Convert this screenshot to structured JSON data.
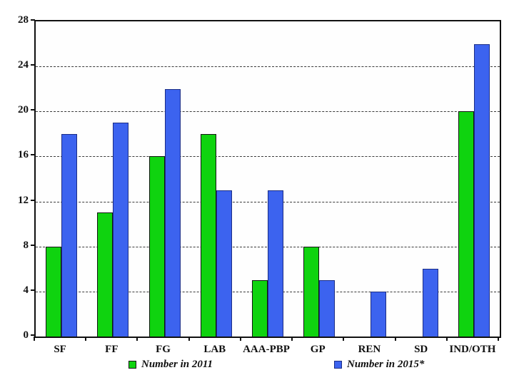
{
  "chart_data": {
    "type": "bar",
    "title": "",
    "xlabel": "",
    "ylabel": "",
    "categories": [
      "SF",
      "FF",
      "FG",
      "LAB",
      "AAA-PBP",
      "GP",
      "REN",
      "SD",
      "IND/OTH"
    ],
    "series": [
      {
        "name": "Number in 2011",
        "color": "#0fd30f",
        "border_color": "#141414",
        "values": [
          8,
          11,
          16,
          18,
          5,
          8,
          0,
          0,
          20
        ]
      },
      {
        "name": "Number in 2015*",
        "color": "#3c63ef",
        "border_color": "#1b2d86",
        "values": [
          18,
          19,
          22,
          13,
          13,
          5,
          4,
          6,
          26
        ]
      }
    ],
    "ylim": [
      0,
      28
    ],
    "ytick_step": 4,
    "yticks": [
      0,
      4,
      8,
      12,
      16,
      20,
      24,
      28
    ],
    "grid": "horizontal-dashed",
    "legend_position": "bottom",
    "frame": true
  }
}
